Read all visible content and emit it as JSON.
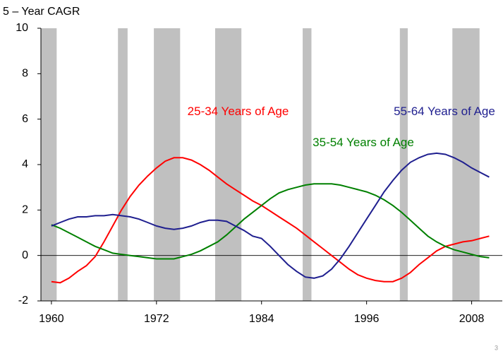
{
  "chart_data": {
    "type": "line",
    "title": "5 – Year CAGR",
    "page_number": "3",
    "x": [
      1960,
      1961,
      1962,
      1963,
      1964,
      1965,
      1966,
      1967,
      1968,
      1969,
      1970,
      1971,
      1972,
      1973,
      1974,
      1975,
      1976,
      1977,
      1978,
      1979,
      1980,
      1981,
      1982,
      1983,
      1984,
      1985,
      1986,
      1987,
      1988,
      1989,
      1990,
      1991,
      1992,
      1993,
      1994,
      1995,
      1996,
      1997,
      1998,
      1999,
      2000,
      2001,
      2002,
      2003,
      2004,
      2005,
      2006,
      2007,
      2008,
      2009,
      2010
    ],
    "series": [
      {
        "name": "25-34 Years of Age",
        "color": "#ff0000",
        "values": [
          -1.15,
          -1.2,
          -1.0,
          -0.7,
          -0.45,
          -0.05,
          0.6,
          1.3,
          2.0,
          2.6,
          3.1,
          3.5,
          3.85,
          4.15,
          4.3,
          4.3,
          4.2,
          4.0,
          3.75,
          3.45,
          3.15,
          2.9,
          2.65,
          2.4,
          2.2,
          1.95,
          1.7,
          1.45,
          1.2,
          0.9,
          0.6,
          0.3,
          0.0,
          -0.3,
          -0.6,
          -0.85,
          -1.0,
          -1.1,
          -1.15,
          -1.15,
          -1.0,
          -0.75,
          -0.4,
          -0.1,
          0.2,
          0.4,
          0.5,
          0.6,
          0.65,
          0.75,
          0.85
        ]
      },
      {
        "name": "35-54 Years of Age",
        "color": "#008000",
        "values": [
          1.35,
          1.2,
          1.0,
          0.8,
          0.6,
          0.4,
          0.25,
          0.1,
          0.05,
          0.0,
          -0.05,
          -0.1,
          -0.15,
          -0.15,
          -0.15,
          -0.05,
          0.05,
          0.2,
          0.4,
          0.6,
          0.9,
          1.25,
          1.6,
          1.9,
          2.2,
          2.5,
          2.75,
          2.9,
          3.0,
          3.1,
          3.15,
          3.15,
          3.15,
          3.1,
          3.0,
          2.9,
          2.8,
          2.65,
          2.45,
          2.2,
          1.9,
          1.55,
          1.2,
          0.85,
          0.6,
          0.4,
          0.25,
          0.15,
          0.05,
          -0.05,
          -0.1
        ]
      },
      {
        "name": "55-64 Years of Age",
        "color": "#1f1f8f",
        "values": [
          1.3,
          1.45,
          1.6,
          1.7,
          1.7,
          1.75,
          1.75,
          1.8,
          1.75,
          1.7,
          1.6,
          1.45,
          1.3,
          1.2,
          1.15,
          1.2,
          1.3,
          1.45,
          1.55,
          1.55,
          1.5,
          1.3,
          1.1,
          0.85,
          0.75,
          0.4,
          0.0,
          -0.4,
          -0.7,
          -0.95,
          -1.0,
          -0.9,
          -0.6,
          -0.15,
          0.4,
          1.0,
          1.6,
          2.2,
          2.8,
          3.3,
          3.75,
          4.1,
          4.3,
          4.45,
          4.5,
          4.45,
          4.3,
          4.1,
          3.85,
          3.65,
          3.45
        ]
      }
    ],
    "shaded_periods": [
      [
        1958.8,
        1960.6
      ],
      [
        1967.6,
        1968.7
      ],
      [
        1971.7,
        1974.7
      ],
      [
        1978.7,
        1981.7
      ],
      [
        1988.7,
        1989.7
      ],
      [
        1999.8,
        2000.7
      ],
      [
        2005.8,
        2008.9
      ]
    ],
    "shade_color": "#c0c0c0",
    "xlim": [
      1958.8,
      2011.5
    ],
    "xticks": [
      1960,
      1972,
      1984,
      1996,
      2008
    ],
    "ylim": [
      -2,
      10
    ],
    "yticks": [
      -2,
      0,
      2,
      4,
      6,
      8,
      10
    ],
    "grid": false
  }
}
